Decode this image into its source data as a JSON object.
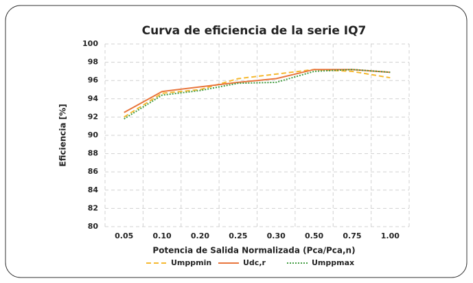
{
  "chart_data": {
    "type": "line",
    "title": "Curva de eficiencia de la serie IQ7",
    "x_label": "Potencia de Salida Normalizada (Pca/Pca,n)",
    "y_label": "Eficiencia [%]",
    "categories": [
      "0.05",
      "0.10",
      "0.20",
      "0.25",
      "0.30",
      "0.50",
      "0.75",
      "1.00"
    ],
    "series": [
      {
        "name": "Umppmin",
        "color": "#f5b82e",
        "dash": "dashed",
        "values": [
          92.0,
          94.6,
          95.0,
          96.2,
          96.7,
          97.2,
          97.0,
          96.3
        ]
      },
      {
        "name": "Udc,r",
        "color": "#e8743b",
        "dash": "solid",
        "values": [
          92.5,
          94.8,
          95.3,
          95.8,
          96.2,
          97.2,
          97.2,
          96.9
        ]
      },
      {
        "name": "Umppmax",
        "color": "#3f9b3f",
        "dash": "dotted",
        "values": [
          91.8,
          94.4,
          94.9,
          95.7,
          95.8,
          97.0,
          97.2,
          96.9
        ]
      }
    ],
    "ylim": [
      80,
      100
    ],
    "yticks": [
      80,
      82,
      84,
      86,
      88,
      90,
      92,
      94,
      96,
      98,
      100
    ],
    "grid": true,
    "legend": "bottom"
  }
}
